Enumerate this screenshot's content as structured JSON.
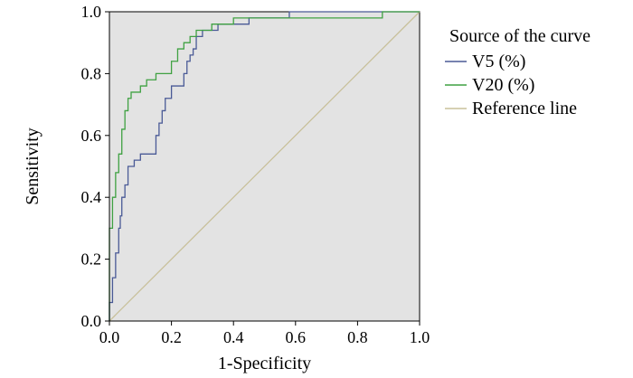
{
  "chart_data": {
    "type": "line",
    "title": "",
    "xlabel": "1-Specificity",
    "ylabel": "Sensitivity",
    "xlim": [
      0,
      1
    ],
    "ylim": [
      0,
      1
    ],
    "x_ticks": [
      "0.0",
      "0.2",
      "0.4",
      "0.6",
      "0.8",
      "1.0"
    ],
    "y_ticks": [
      "0.0",
      "0.2",
      "0.4",
      "0.6",
      "0.8",
      "1.0"
    ],
    "grid": false,
    "plot_background": "#e3e3e3",
    "legend": {
      "title": "Source of the curve",
      "position": "right",
      "entries": [
        "V5 (%)",
        "V20 (%)",
        "Reference line"
      ]
    },
    "series": [
      {
        "name": "V5 (%)",
        "color": "#4a5a96",
        "step": true,
        "x": [
          0.0,
          0.0,
          0.01,
          0.02,
          0.03,
          0.035,
          0.04,
          0.05,
          0.06,
          0.07,
          0.08,
          0.1,
          0.12,
          0.15,
          0.16,
          0.17,
          0.18,
          0.19,
          0.2,
          0.24,
          0.25,
          0.26,
          0.27,
          0.28,
          0.3,
          0.32,
          0.35,
          0.38,
          0.4,
          0.45,
          0.5,
          0.58,
          0.58,
          0.9,
          1.0
        ],
        "y": [
          0.0,
          0.02,
          0.06,
          0.14,
          0.22,
          0.3,
          0.34,
          0.4,
          0.44,
          0.5,
          0.5,
          0.52,
          0.54,
          0.54,
          0.6,
          0.64,
          0.68,
          0.72,
          0.72,
          0.76,
          0.8,
          0.84,
          0.86,
          0.88,
          0.92,
          0.94,
          0.94,
          0.96,
          0.96,
          0.96,
          0.98,
          0.98,
          1.0,
          1.0,
          1.0
        ]
      },
      {
        "name": "V20 (%)",
        "color": "#3fa142",
        "step": true,
        "x": [
          0.0,
          0.0,
          0.01,
          0.02,
          0.03,
          0.04,
          0.05,
          0.06,
          0.07,
          0.08,
          0.1,
          0.12,
          0.14,
          0.15,
          0.2,
          0.22,
          0.24,
          0.26,
          0.28,
          0.3,
          0.33,
          0.36,
          0.4,
          0.5,
          0.55,
          0.6,
          0.88,
          0.9,
          1.0
        ],
        "y": [
          0.0,
          0.2,
          0.3,
          0.4,
          0.48,
          0.54,
          0.62,
          0.68,
          0.72,
          0.74,
          0.74,
          0.76,
          0.78,
          0.78,
          0.8,
          0.84,
          0.88,
          0.9,
          0.92,
          0.94,
          0.94,
          0.96,
          0.96,
          0.98,
          0.98,
          0.98,
          0.98,
          1.0,
          1.0
        ]
      },
      {
        "name": "Reference line",
        "color": "#c8c09a",
        "step": false,
        "x": [
          0,
          1
        ],
        "y": [
          0,
          1
        ]
      }
    ]
  }
}
